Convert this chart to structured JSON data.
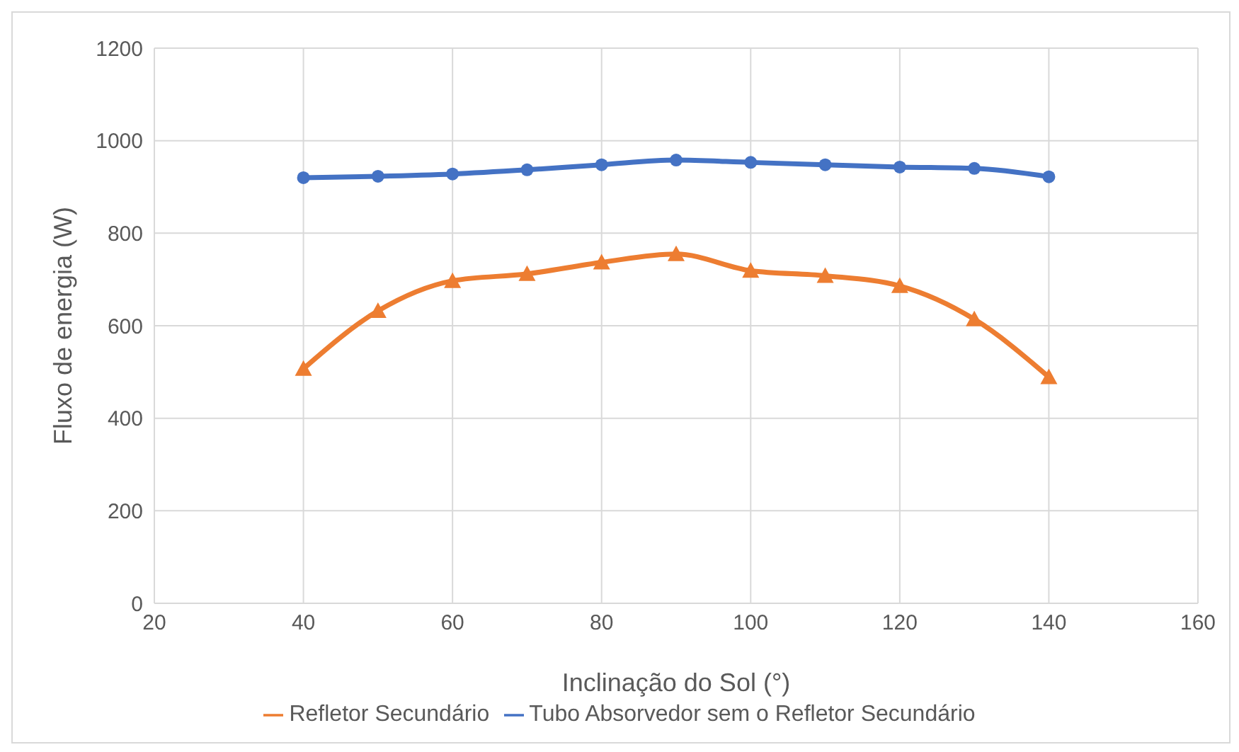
{
  "chart_data": {
    "type": "line",
    "xlabel": "Inclinação do Sol (°)",
    "ylabel": "Fluxo de energia (W)",
    "x": [
      40,
      50,
      60,
      70,
      80,
      90,
      100,
      110,
      120,
      130,
      140
    ],
    "series": [
      {
        "name": "Tubo Absorvedor sem o Refletor Secundário",
        "color": "#4472c4",
        "marker": "circle",
        "values": [
          920,
          923,
          928,
          937,
          948,
          958,
          953,
          948,
          943,
          940,
          922
        ]
      },
      {
        "name": "Refletor Secundário",
        "color": "#ed7d31",
        "marker": "triangle",
        "values": [
          507,
          632,
          697,
          712,
          737,
          755,
          719,
          708,
          686,
          614,
          489
        ]
      }
    ],
    "xlim": [
      20,
      160
    ],
    "xticks": [
      20,
      40,
      60,
      80,
      100,
      120,
      140,
      160
    ],
    "ylim": [
      0,
      1200
    ],
    "yticks": [
      0,
      200,
      400,
      600,
      800,
      1000,
      1200
    ],
    "grid": true,
    "legend": "bottom"
  }
}
